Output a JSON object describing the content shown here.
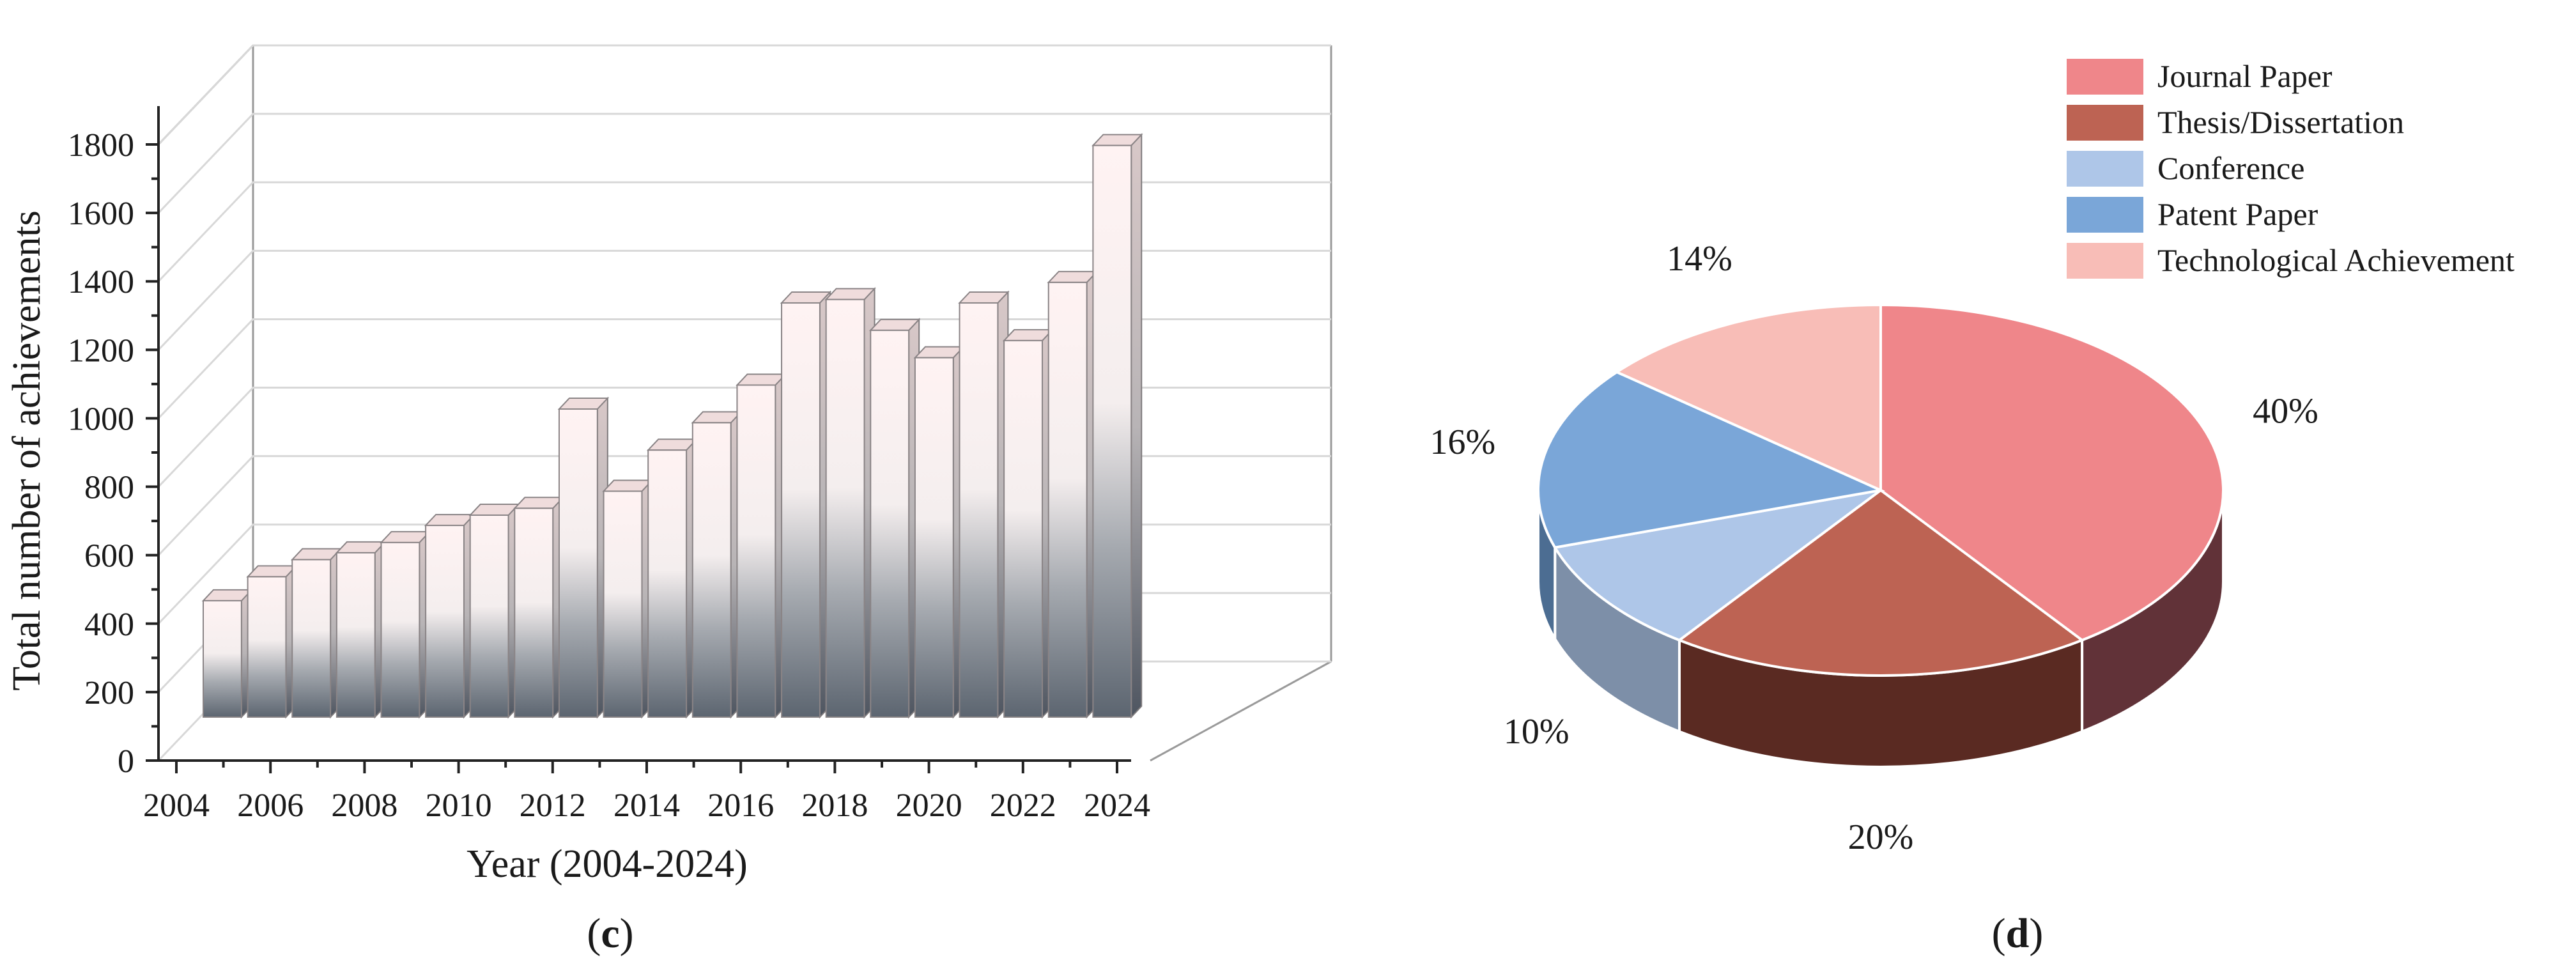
{
  "chart_data": [
    {
      "type": "bar",
      "panel_label": "c",
      "title": "",
      "xlabel": "Year (2004-2024)",
      "ylabel": "Total number of achievements",
      "ylim": [
        0,
        1800
      ],
      "y_ticks": [
        0,
        200,
        400,
        600,
        800,
        1000,
        1200,
        1400,
        1600,
        1800
      ],
      "x_tick_labels": [
        "2004",
        "2006",
        "2008",
        "2010",
        "2012",
        "2014",
        "2016",
        "2018",
        "2020",
        "2022",
        "2024"
      ],
      "categories": [
        "2004",
        "2005",
        "2006",
        "2007",
        "2008",
        "2009",
        "2010",
        "2011",
        "2012",
        "2013",
        "2014",
        "2015",
        "2016",
        "2017",
        "2018",
        "2019",
        "2020",
        "2021",
        "2022",
        "2023",
        "2024"
      ],
      "values": [
        340,
        410,
        460,
        480,
        510,
        560,
        590,
        610,
        900,
        660,
        780,
        860,
        970,
        1210,
        1220,
        1130,
        1050,
        1210,
        1100,
        1270,
        1670
      ],
      "grid": true,
      "style": "3d",
      "colors": {
        "bar_top": "#fff3f3",
        "bar_bottom": "#5c6570",
        "bar_side": "#a9a0a0",
        "grid": "#d8d8d8",
        "wall": "#9a9a9a"
      }
    },
    {
      "type": "pie",
      "panel_label": "d",
      "title": "",
      "style": "3d",
      "legend_position": "top-right",
      "series": [
        {
          "name": "Journal Paper",
          "value": 40,
          "label": "40%",
          "color": "#ef868a",
          "side_color": "#613238"
        },
        {
          "name": "Thesis/Dissertation",
          "value": 20,
          "label": "20%",
          "color": "#bd6353",
          "side_color": "#5a2a22"
        },
        {
          "name": "Conference",
          "value": 10,
          "label": "10%",
          "color": "#aec6e8",
          "side_color": "#7d8fa8"
        },
        {
          "name": "Patent Paper",
          "value": 16,
          "label": "16%",
          "color": "#7aa6d8",
          "side_color": "#4c6d92"
        },
        {
          "name": "Technological Achievement",
          "value": 14,
          "label": "14%",
          "color": "#f8bdb7",
          "side_color": "#b08580"
        }
      ]
    }
  ]
}
